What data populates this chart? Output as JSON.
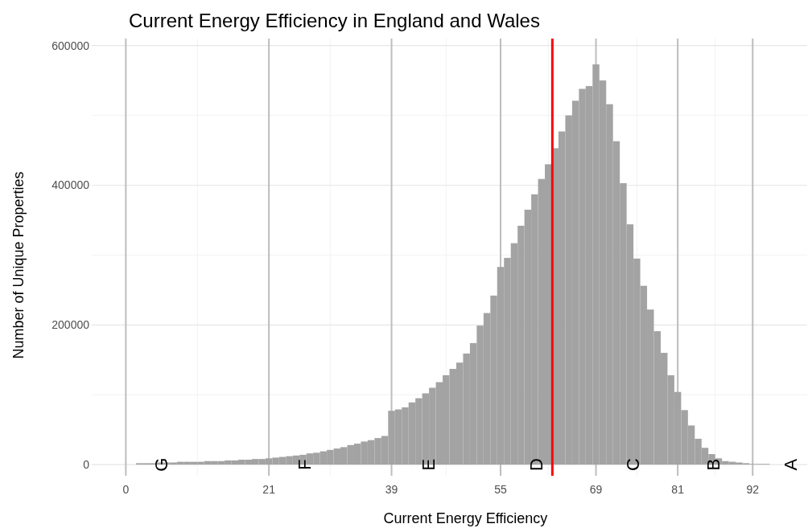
{
  "chart_data": {
    "type": "histogram",
    "title": "Current Energy Efficiency in England and Wales",
    "xlabel": "Current Energy Efficiency",
    "ylabel": "Number of Unique Properties",
    "bins": [
      1.5,
      2.5,
      3.5,
      4.5,
      5.5,
      6.5,
      7.5,
      8.5,
      9.5,
      10.5,
      11.5,
      12.5,
      13.5,
      14.5,
      15.5,
      16.5,
      17.5,
      18.5,
      19.5,
      20.5,
      21.5,
      22.5,
      23.5,
      24.5,
      25.5,
      26.5,
      27.5,
      28.5,
      29.5,
      30.5,
      31.5,
      32.5,
      33.5,
      34.5,
      35.5,
      36.5,
      37.5,
      38.5,
      39.5,
      40.5,
      41.5,
      42.5,
      43.5,
      44.5,
      45.5,
      46.5,
      47.5,
      48.5,
      49.5,
      50.5,
      51.5,
      52.5,
      53.5,
      54.5,
      55.5,
      56.5,
      57.5,
      58.5,
      59.5,
      60.5,
      61.5,
      62.5,
      63.5,
      64.5,
      65.5,
      66.5,
      67.5,
      68.5,
      69.5,
      70.5,
      71.5,
      72.5,
      73.5,
      74.5,
      75.5,
      76.5,
      77.5,
      78.5,
      79.5,
      80.5,
      81.5,
      82.5,
      83.5,
      84.5,
      85.5,
      86.5,
      87.5,
      88.5,
      89.5,
      90.5,
      91.5,
      92.5,
      93.5,
      94.5,
      95.5
    ],
    "values": [
      2000,
      2000,
      2000,
      3000,
      3000,
      3000,
      4000,
      4000,
      4000,
      4000,
      5000,
      5000,
      5000,
      6000,
      6000,
      7000,
      7000,
      8000,
      8000,
      9000,
      10000,
      11000,
      12000,
      13000,
      14000,
      16000,
      17000,
      19000,
      21000,
      23000,
      25000,
      28000,
      30000,
      33000,
      35000,
      38000,
      41000,
      77000,
      79000,
      82000,
      89000,
      95000,
      102000,
      110000,
      118000,
      128000,
      137000,
      146000,
      159000,
      174000,
      199000,
      217000,
      242000,
      283000,
      296000,
      317000,
      342000,
      365000,
      387000,
      409000,
      430000,
      453000,
      477000,
      500000,
      521000,
      538000,
      542000,
      573000,
      550000,
      516000,
      463000,
      403000,
      344000,
      295000,
      256000,
      222000,
      191000,
      160000,
      128000,
      104000,
      78000,
      56000,
      37000,
      24000,
      15000,
      9000,
      5000,
      4000,
      3000,
      2000,
      1000,
      1000,
      1000,
      0
    ],
    "color": "#a3a3a3",
    "xlim": [
      -5,
      100
    ],
    "xticks": [
      0,
      21,
      39,
      55,
      69,
      81,
      92
    ],
    "ylim": [
      -16000,
      610000
    ],
    "yticks": [
      0,
      200000,
      400000,
      600000
    ],
    "grid": true,
    "ref_lines": [
      {
        "axis": "x",
        "value": 62.6,
        "color": "#ff0000"
      }
    ],
    "annotations": [
      {
        "text": "G",
        "x": 5.2,
        "y": 0
      },
      {
        "text": "F",
        "x": 26.2,
        "y": 0
      },
      {
        "text": "E",
        "x": 44.4,
        "y": 0
      },
      {
        "text": "D",
        "x": 60.2,
        "y": 0
      },
      {
        "text": "C",
        "x": 74.4,
        "y": 0
      },
      {
        "text": "B",
        "x": 86.2,
        "y": 0
      },
      "A"
    ]
  }
}
